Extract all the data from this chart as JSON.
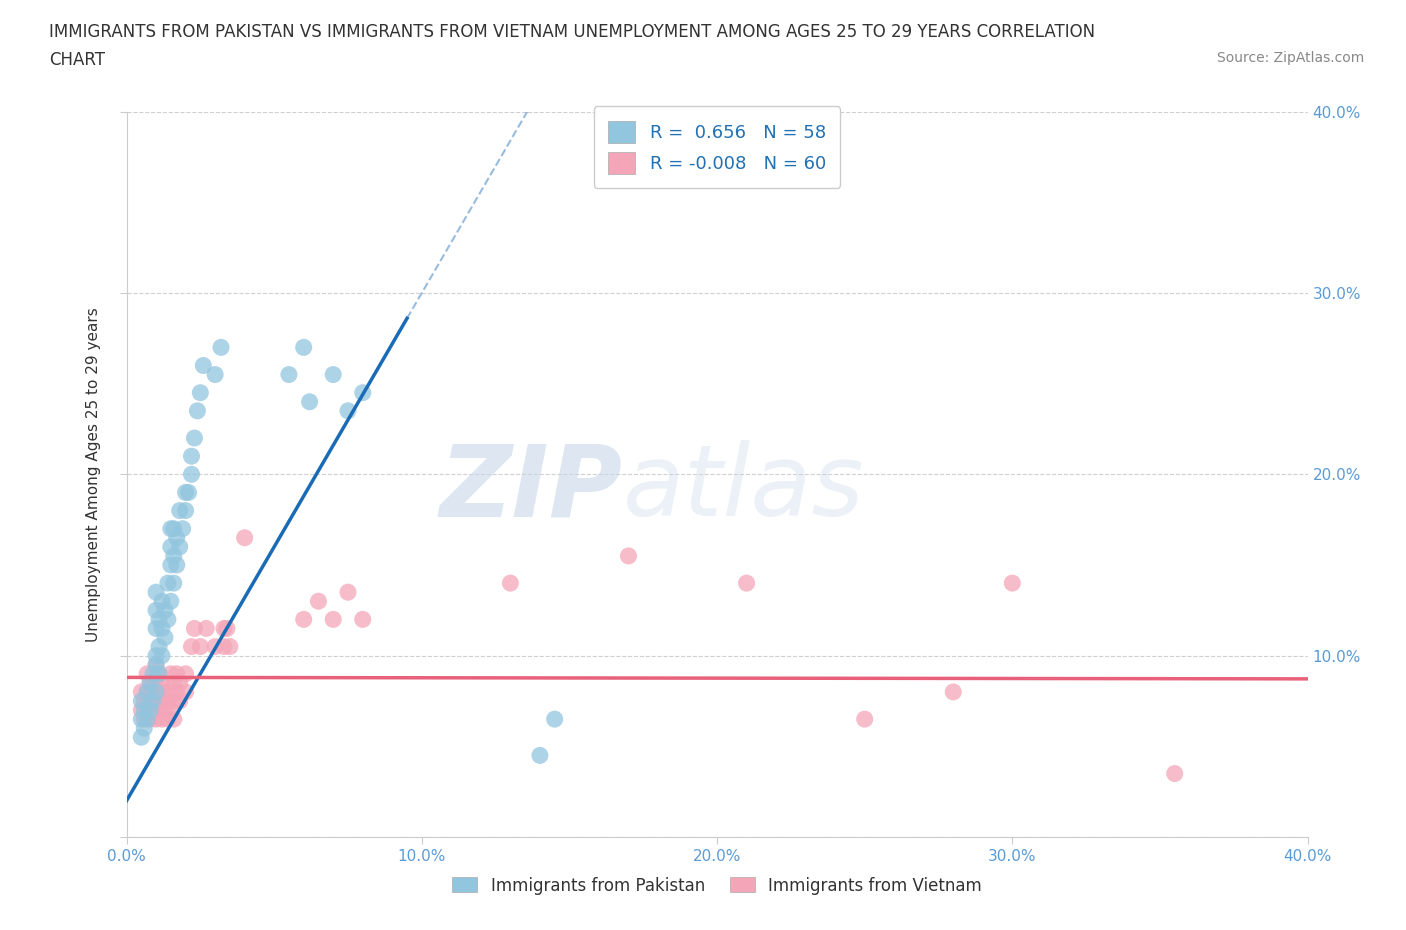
{
  "title_line1": "IMMIGRANTS FROM PAKISTAN VS IMMIGRANTS FROM VIETNAM UNEMPLOYMENT AMONG AGES 25 TO 29 YEARS CORRELATION",
  "title_line2": "CHART",
  "source_text": "Source: ZipAtlas.com",
  "xlabel": "Immigrants from Pakistan",
  "ylabel": "Unemployment Among Ages 25 to 29 years",
  "xlim": [
    0.0,
    0.4
  ],
  "ylim": [
    0.0,
    0.4
  ],
  "xticks": [
    0.0,
    0.1,
    0.2,
    0.3,
    0.4
  ],
  "yticks": [
    0.0,
    0.1,
    0.2,
    0.3,
    0.4
  ],
  "xtick_labels": [
    "0.0%",
    "10.0%",
    "20.0%",
    "30.0%",
    "40.0%"
  ],
  "ytick_labels_left": [
    "0.0%",
    "10.0%",
    "20.0%",
    "30.0%",
    "40.0%"
  ],
  "ytick_labels_right": [
    "",
    "10.0%",
    "20.0%",
    "30.0%",
    "40.0%"
  ],
  "pakistan_color": "#92c5de",
  "vietnam_color": "#f4a6b8",
  "pakistan_R": 0.656,
  "pakistan_N": 58,
  "vietnam_R": -0.008,
  "vietnam_N": 60,
  "pakistan_line_color": "#1a6bb5",
  "vietnam_line_color": "#e8607a",
  "watermark_zip": "ZIP",
  "watermark_atlas": "atlas",
  "background_color": "#ffffff",
  "grid_color": "#d0d0d0",
  "pakistan_scatter": [
    [
      0.005,
      0.055
    ],
    [
      0.005,
      0.065
    ],
    [
      0.005,
      0.075
    ],
    [
      0.006,
      0.06
    ],
    [
      0.006,
      0.07
    ],
    [
      0.007,
      0.065
    ],
    [
      0.007,
      0.08
    ],
    [
      0.008,
      0.07
    ],
    [
      0.008,
      0.085
    ],
    [
      0.009,
      0.075
    ],
    [
      0.009,
      0.09
    ],
    [
      0.01,
      0.08
    ],
    [
      0.01,
      0.095
    ],
    [
      0.01,
      0.1
    ],
    [
      0.01,
      0.115
    ],
    [
      0.01,
      0.125
    ],
    [
      0.01,
      0.135
    ],
    [
      0.011,
      0.09
    ],
    [
      0.011,
      0.105
    ],
    [
      0.011,
      0.12
    ],
    [
      0.012,
      0.1
    ],
    [
      0.012,
      0.115
    ],
    [
      0.012,
      0.13
    ],
    [
      0.013,
      0.11
    ],
    [
      0.013,
      0.125
    ],
    [
      0.014,
      0.12
    ],
    [
      0.014,
      0.14
    ],
    [
      0.015,
      0.13
    ],
    [
      0.015,
      0.15
    ],
    [
      0.015,
      0.16
    ],
    [
      0.015,
      0.17
    ],
    [
      0.016,
      0.14
    ],
    [
      0.016,
      0.155
    ],
    [
      0.016,
      0.17
    ],
    [
      0.017,
      0.15
    ],
    [
      0.017,
      0.165
    ],
    [
      0.018,
      0.16
    ],
    [
      0.018,
      0.18
    ],
    [
      0.019,
      0.17
    ],
    [
      0.02,
      0.18
    ],
    [
      0.02,
      0.19
    ],
    [
      0.021,
      0.19
    ],
    [
      0.022,
      0.2
    ],
    [
      0.022,
      0.21
    ],
    [
      0.023,
      0.22
    ],
    [
      0.024,
      0.235
    ],
    [
      0.025,
      0.245
    ],
    [
      0.026,
      0.26
    ],
    [
      0.03,
      0.255
    ],
    [
      0.032,
      0.27
    ],
    [
      0.055,
      0.255
    ],
    [
      0.06,
      0.27
    ],
    [
      0.062,
      0.24
    ],
    [
      0.07,
      0.255
    ],
    [
      0.075,
      0.235
    ],
    [
      0.08,
      0.245
    ],
    [
      0.14,
      0.045
    ],
    [
      0.145,
      0.065
    ]
  ],
  "vietnam_scatter": [
    [
      0.005,
      0.07
    ],
    [
      0.005,
      0.08
    ],
    [
      0.006,
      0.065
    ],
    [
      0.006,
      0.075
    ],
    [
      0.007,
      0.07
    ],
    [
      0.007,
      0.08
    ],
    [
      0.007,
      0.09
    ],
    [
      0.008,
      0.065
    ],
    [
      0.008,
      0.075
    ],
    [
      0.008,
      0.085
    ],
    [
      0.009,
      0.07
    ],
    [
      0.009,
      0.08
    ],
    [
      0.01,
      0.065
    ],
    [
      0.01,
      0.075
    ],
    [
      0.01,
      0.085
    ],
    [
      0.01,
      0.095
    ],
    [
      0.011,
      0.07
    ],
    [
      0.011,
      0.08
    ],
    [
      0.011,
      0.09
    ],
    [
      0.012,
      0.065
    ],
    [
      0.012,
      0.075
    ],
    [
      0.012,
      0.085
    ],
    [
      0.013,
      0.07
    ],
    [
      0.013,
      0.08
    ],
    [
      0.014,
      0.065
    ],
    [
      0.014,
      0.075
    ],
    [
      0.015,
      0.07
    ],
    [
      0.015,
      0.08
    ],
    [
      0.015,
      0.09
    ],
    [
      0.016,
      0.065
    ],
    [
      0.016,
      0.075
    ],
    [
      0.016,
      0.085
    ],
    [
      0.017,
      0.08
    ],
    [
      0.017,
      0.09
    ],
    [
      0.018,
      0.075
    ],
    [
      0.018,
      0.085
    ],
    [
      0.02,
      0.08
    ],
    [
      0.02,
      0.09
    ],
    [
      0.022,
      0.105
    ],
    [
      0.023,
      0.115
    ],
    [
      0.025,
      0.105
    ],
    [
      0.027,
      0.115
    ],
    [
      0.03,
      0.105
    ],
    [
      0.033,
      0.115
    ],
    [
      0.033,
      0.105
    ],
    [
      0.034,
      0.115
    ],
    [
      0.035,
      0.105
    ],
    [
      0.04,
      0.165
    ],
    [
      0.06,
      0.12
    ],
    [
      0.065,
      0.13
    ],
    [
      0.07,
      0.12
    ],
    [
      0.075,
      0.135
    ],
    [
      0.08,
      0.12
    ],
    [
      0.13,
      0.14
    ],
    [
      0.17,
      0.155
    ],
    [
      0.21,
      0.14
    ],
    [
      0.25,
      0.065
    ],
    [
      0.28,
      0.08
    ],
    [
      0.3,
      0.14
    ],
    [
      0.355,
      0.035
    ]
  ],
  "title_fontsize": 12,
  "axis_label_fontsize": 11,
  "tick_fontsize": 11,
  "legend_fontsize": 13
}
